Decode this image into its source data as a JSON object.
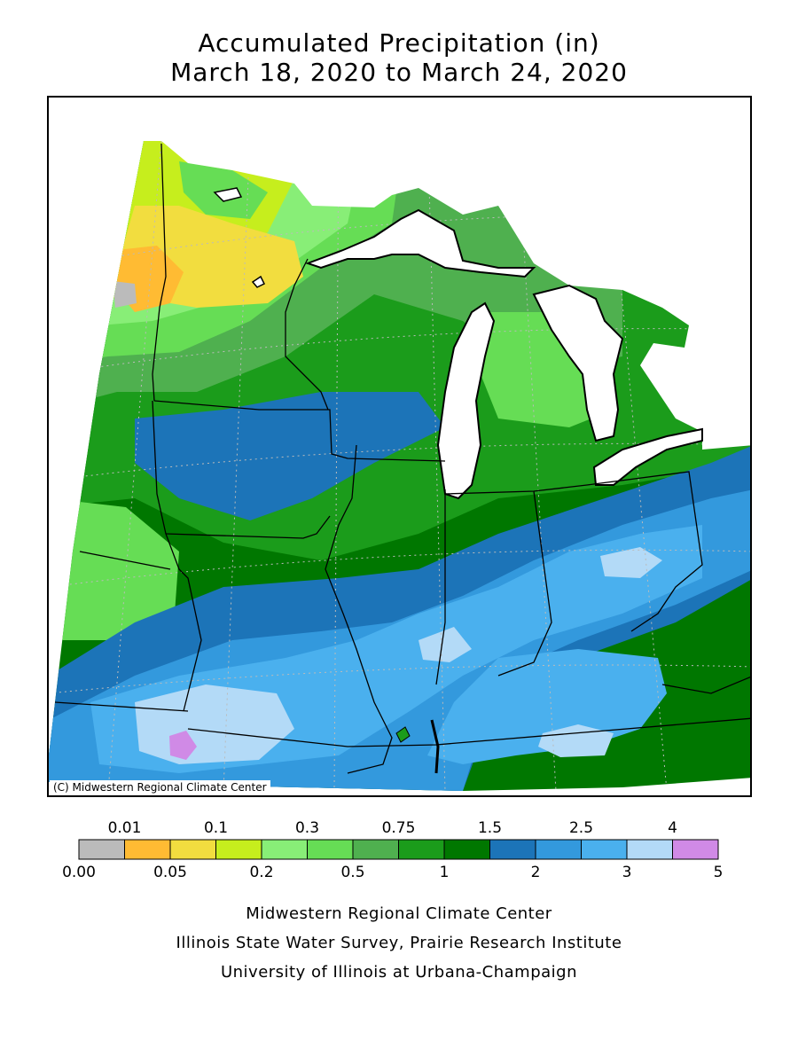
{
  "title": {
    "line1": "Accumulated Precipitation (in)",
    "line2": "March 18, 2020 to March 24, 2020"
  },
  "map": {
    "copyright": "(C) Midwestern Regional Climate Center"
  },
  "legend": {
    "top_labels": [
      "0.01",
      "0.1",
      "0.3",
      "0.75",
      "1.5",
      "2.5",
      "4"
    ],
    "bottom_labels": [
      "0.00",
      "0.05",
      "0.2",
      "0.5",
      "1",
      "2",
      "3",
      "5"
    ],
    "colors": [
      "#bbbbbb",
      "#ffbb33",
      "#f2dd3f",
      "#c6ee1d",
      "#88ee77",
      "#66dd55",
      "#4fb04f",
      "#1b9c1b",
      "#007700",
      "#1c74b8",
      "#3399dd",
      "#4ab0ee",
      "#b3daf7",
      "#d08ae6"
    ]
  },
  "footer": {
    "line1": "Midwestern Regional Climate Center",
    "line2": "Illinois State Water Survey, Prairie Research Institute",
    "line3": "University of Illinois at Urbana-Champaign"
  }
}
